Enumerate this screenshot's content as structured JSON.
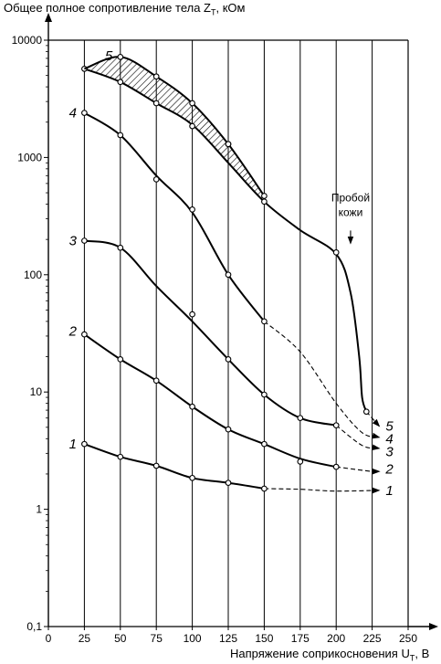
{
  "chart_data": {
    "type": "line",
    "ylabel_prefix": "Общее полное сопротивление тела Z",
    "ylabel_sub": "T",
    "ylabel_suffix": ", кОм",
    "xlabel_prefix": "Напряжение соприкосновения U",
    "xlabel_sub": "T",
    "xlabel_suffix": ", В",
    "x_ticks": [
      0,
      25,
      50,
      75,
      100,
      125,
      150,
      175,
      200,
      225,
      250
    ],
    "y_ticks": [
      0.1,
      1,
      10,
      100,
      1000,
      10000
    ],
    "y_tick_labels": [
      "0,1",
      "1",
      "10",
      "100",
      "1000",
      "10000"
    ],
    "xlim": [
      0,
      250
    ],
    "ylim": [
      0.1,
      10000
    ],
    "y_scale": "log",
    "grid": "vertical",
    "annotation": [
      "Пробой",
      "кожи"
    ],
    "series": [
      {
        "name": "1",
        "solid": [
          [
            25,
            3.6
          ],
          [
            50,
            2.8
          ],
          [
            75,
            2.35
          ],
          [
            100,
            1.85
          ],
          [
            125,
            1.68
          ],
          [
            150,
            1.5
          ]
        ],
        "dashed": [
          [
            150,
            1.5
          ],
          [
            175,
            1.48
          ],
          [
            200,
            1.43
          ],
          [
            230,
            1.45
          ]
        ],
        "markers": [
          [
            25,
            3.6
          ],
          [
            50,
            2.8
          ],
          [
            75,
            2.35
          ],
          [
            100,
            1.85
          ],
          [
            125,
            1.68
          ],
          [
            150,
            1.5
          ]
        ],
        "label_left": [
          17,
          3.6
        ],
        "label_right": [
          237,
          1.45
        ]
      },
      {
        "name": "2",
        "solid": [
          [
            25,
            31
          ],
          [
            50,
            19
          ],
          [
            75,
            12.5
          ],
          [
            100,
            7.5
          ],
          [
            125,
            4.8
          ],
          [
            150,
            3.6
          ],
          [
            175,
            2.7
          ],
          [
            200,
            2.3
          ]
        ],
        "dashed": [
          [
            200,
            2.3
          ],
          [
            225,
            2.1
          ],
          [
            230,
            2.1
          ]
        ],
        "markers": [
          [
            25,
            31
          ],
          [
            50,
            19
          ],
          [
            75,
            12.5
          ],
          [
            100,
            7.5
          ],
          [
            125,
            4.8
          ],
          [
            150,
            3.6
          ],
          [
            175,
            2.55
          ],
          [
            200,
            2.3
          ]
        ],
        "label_left": [
          17,
          33
        ],
        "label_right": [
          237,
          2.2
        ]
      },
      {
        "name": "3",
        "solid": [
          [
            25,
            195
          ],
          [
            50,
            170
          ],
          [
            75,
            80
          ],
          [
            100,
            40
          ],
          [
            125,
            19
          ],
          [
            150,
            9.5
          ],
          [
            175,
            6
          ],
          [
            200,
            5.2
          ]
        ],
        "dashed": [
          [
            200,
            5.2
          ],
          [
            218,
            3.5
          ],
          [
            230,
            3.3
          ]
        ],
        "markers": [
          [
            25,
            195
          ],
          [
            50,
            170
          ],
          [
            100,
            46
          ],
          [
            125,
            19
          ],
          [
            150,
            9.5
          ],
          [
            175,
            6
          ],
          [
            200,
            5.2
          ]
        ],
        "label_left": [
          17,
          195
        ],
        "label_right": [
          237,
          3.1
        ]
      },
      {
        "name": "4",
        "solid": [
          [
            25,
            2400
          ],
          [
            50,
            1550
          ],
          [
            75,
            700
          ],
          [
            100,
            340
          ],
          [
            125,
            100
          ],
          [
            150,
            40
          ]
        ],
        "dashed": [
          [
            150,
            40
          ],
          [
            175,
            22
          ],
          [
            200,
            8
          ],
          [
            218,
            4.5
          ],
          [
            230,
            4.1
          ]
        ],
        "markers": [
          [
            25,
            2400
          ],
          [
            50,
            1550
          ],
          [
            75,
            650
          ],
          [
            100,
            360
          ],
          [
            125,
            100
          ],
          [
            150,
            40
          ]
        ],
        "label_left": [
          17,
          2400
        ],
        "label_right": [
          237,
          4.0
        ]
      },
      {
        "name": "5",
        "solid": [
          [
            25,
            5700
          ],
          [
            50,
            4400
          ],
          [
            75,
            2900
          ],
          [
            100,
            1900
          ],
          [
            125,
            900
          ],
          [
            150,
            420
          ],
          [
            175,
            240
          ],
          [
            200,
            150
          ],
          [
            210,
            70
          ],
          [
            216,
            20
          ],
          [
            218,
            9
          ],
          [
            221,
            6.8
          ]
        ],
        "dashed": [
          [
            221,
            6.8
          ],
          [
            230,
            5.1
          ]
        ],
        "markers": [
          [
            25,
            5700
          ],
          [
            50,
            4400
          ],
          [
            75,
            2900
          ],
          [
            100,
            1850
          ],
          [
            125,
            1300
          ],
          [
            150,
            420
          ],
          [
            200,
            155
          ],
          [
            221,
            6.8
          ]
        ],
        "label_left": [
          42,
          7400
        ],
        "label_right": [
          237,
          5.1
        ]
      },
      {
        "name": "5-upper",
        "solid": [
          [
            25,
            5700
          ],
          [
            50,
            7200
          ],
          [
            75,
            4900
          ],
          [
            100,
            2900
          ],
          [
            125,
            1300
          ],
          [
            150,
            470
          ]
        ],
        "dashed": [],
        "markers": [
          [
            50,
            7200
          ],
          [
            75,
            4900
          ],
          [
            100,
            2900
          ],
          [
            125,
            1300
          ],
          [
            150,
            470
          ]
        ]
      }
    ]
  }
}
